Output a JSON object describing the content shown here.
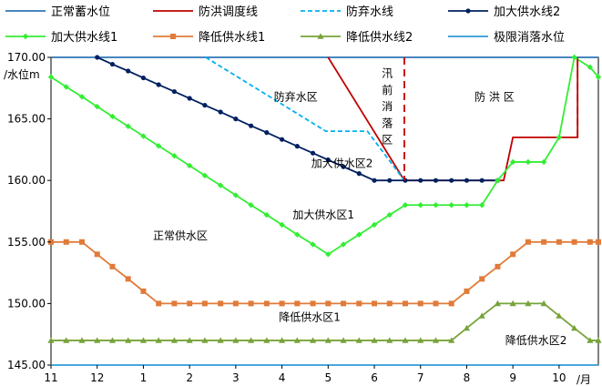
{
  "chart_data": {
    "type": "line",
    "ylabel": "/水位m",
    "xunit": "/月",
    "ylim": [
      145,
      170
    ],
    "yticks": [
      {
        "value": 145,
        "label": "145.00"
      },
      {
        "value": 150,
        "label": "150.00"
      },
      {
        "value": 155,
        "label": "155.00"
      },
      {
        "value": 160,
        "label": "160.00"
      },
      {
        "value": 165,
        "label": "165.00"
      },
      {
        "value": 170,
        "label": "170.00"
      }
    ],
    "xlim": [
      11,
      10.85
    ],
    "xticks": [
      {
        "value": 11,
        "label": "11"
      },
      {
        "value": 12,
        "label": "12"
      },
      {
        "value": 1,
        "label": "1"
      },
      {
        "value": 2,
        "label": "2"
      },
      {
        "value": 3,
        "label": "3"
      },
      {
        "value": 4,
        "label": "4"
      },
      {
        "value": 5,
        "label": "5"
      },
      {
        "value": 6,
        "label": "6"
      },
      {
        "value": 7,
        "label": "7"
      },
      {
        "value": 8,
        "label": "8"
      },
      {
        "value": 9,
        "label": "9"
      },
      {
        "value": 10,
        "label": "10"
      }
    ],
    "grid": false,
    "legend_position": "top",
    "series": [
      {
        "name": "正常蓄水位",
        "color": "#2e75b6",
        "dash": "",
        "marker": "none",
        "points": [
          [
            11,
            170
          ],
          [
            10.85,
            170
          ]
        ]
      },
      {
        "name": "防洪调度线",
        "color": "#c00000",
        "dash": "",
        "marker": "none",
        "points": [
          [
            5,
            170
          ],
          [
            6.65,
            160
          ],
          [
            8.8,
            160
          ],
          [
            9,
            163.5
          ],
          [
            10.4,
            163.5
          ],
          [
            10.4,
            170
          ]
        ]
      },
      {
        "name": "防弃水线",
        "color": "#00b0f0",
        "dash": "5,3",
        "marker": "none",
        "points": [
          [
            2.35,
            170
          ],
          [
            4.95,
            164
          ],
          [
            5.85,
            164
          ],
          [
            6.65,
            160
          ]
        ]
      },
      {
        "name": "加大供水线2",
        "color": "#002060",
        "dash": "",
        "marker": "circle",
        "points": [
          [
            12,
            170
          ],
          [
            12.33,
            169.44
          ],
          [
            12.67,
            168.89
          ],
          [
            1,
            168.33
          ],
          [
            1.33,
            167.78
          ],
          [
            1.67,
            167.22
          ],
          [
            2,
            166.67
          ],
          [
            2.33,
            166.11
          ],
          [
            2.67,
            165.56
          ],
          [
            3,
            165
          ],
          [
            3.33,
            164.44
          ],
          [
            3.67,
            163.89
          ],
          [
            4,
            163.33
          ],
          [
            4.33,
            162.78
          ],
          [
            4.67,
            162.22
          ],
          [
            5,
            161.67
          ],
          [
            5.33,
            161.11
          ],
          [
            5.67,
            160.56
          ],
          [
            6,
            160
          ],
          [
            6.33,
            160
          ],
          [
            6.67,
            160
          ],
          [
            7,
            160
          ],
          [
            7.33,
            160
          ],
          [
            7.67,
            160
          ],
          [
            8,
            160
          ],
          [
            8.33,
            160
          ],
          [
            8.67,
            160
          ]
        ]
      },
      {
        "name": "加大供水线1",
        "color": "#33ee33",
        "dash": "",
        "marker": "diamond",
        "points": [
          [
            11,
            168.4
          ],
          [
            11.33,
            167.6
          ],
          [
            11.67,
            166.8
          ],
          [
            12,
            166
          ],
          [
            12.33,
            165.2
          ],
          [
            12.67,
            164.4
          ],
          [
            1,
            163.6
          ],
          [
            1.33,
            162.8
          ],
          [
            1.67,
            162
          ],
          [
            2,
            161.2
          ],
          [
            2.33,
            160.4
          ],
          [
            2.67,
            159.6
          ],
          [
            3,
            158.8
          ],
          [
            3.33,
            158
          ],
          [
            3.67,
            157.2
          ],
          [
            4,
            156.4
          ],
          [
            4.33,
            155.6
          ],
          [
            4.67,
            154.8
          ],
          [
            5,
            154
          ],
          [
            5.33,
            154.8
          ],
          [
            5.67,
            155.6
          ],
          [
            6,
            156.4
          ],
          [
            6.33,
            157.2
          ],
          [
            6.67,
            158
          ],
          [
            7,
            158
          ],
          [
            7.33,
            158
          ],
          [
            7.67,
            158
          ],
          [
            8,
            158
          ],
          [
            8.33,
            158
          ],
          [
            8.67,
            160
          ],
          [
            9,
            161.5
          ],
          [
            9.33,
            161.5
          ],
          [
            9.67,
            161.5
          ],
          [
            10,
            163.5
          ],
          [
            10.33,
            170
          ],
          [
            10.67,
            169.2
          ],
          [
            10.85,
            168.4
          ]
        ]
      },
      {
        "name": "降低供水线1",
        "color": "#e07b39",
        "dash": "",
        "marker": "square",
        "points": [
          [
            11,
            155
          ],
          [
            11.33,
            155
          ],
          [
            11.67,
            155
          ],
          [
            12,
            154
          ],
          [
            12.33,
            153
          ],
          [
            12.67,
            152
          ],
          [
            1,
            151
          ],
          [
            1.33,
            150
          ],
          [
            1.67,
            150
          ],
          [
            2,
            150
          ],
          [
            2.33,
            150
          ],
          [
            2.67,
            150
          ],
          [
            3,
            150
          ],
          [
            3.33,
            150
          ],
          [
            3.67,
            150
          ],
          [
            4,
            150
          ],
          [
            4.33,
            150
          ],
          [
            4.67,
            150
          ],
          [
            5,
            150
          ],
          [
            5.33,
            150
          ],
          [
            5.67,
            150
          ],
          [
            6,
            150
          ],
          [
            6.33,
            150
          ],
          [
            6.67,
            150
          ],
          [
            7,
            150
          ],
          [
            7.33,
            150
          ],
          [
            7.67,
            150
          ],
          [
            8,
            151
          ],
          [
            8.33,
            152
          ],
          [
            8.67,
            153
          ],
          [
            9,
            154
          ],
          [
            9.33,
            155
          ],
          [
            9.67,
            155
          ],
          [
            10,
            155
          ],
          [
            10.33,
            155
          ],
          [
            10.67,
            155
          ],
          [
            10.85,
            155
          ]
        ]
      },
      {
        "name": "降低供水线2",
        "color": "#77a33a",
        "dash": "",
        "marker": "triangle",
        "points": [
          [
            11,
            147
          ],
          [
            11.33,
            147
          ],
          [
            11.67,
            147
          ],
          [
            12,
            147
          ],
          [
            12.33,
            147
          ],
          [
            12.67,
            147
          ],
          [
            1,
            147
          ],
          [
            1.33,
            147
          ],
          [
            1.67,
            147
          ],
          [
            2,
            147
          ],
          [
            2.33,
            147
          ],
          [
            2.67,
            147
          ],
          [
            3,
            147
          ],
          [
            3.33,
            147
          ],
          [
            3.67,
            147
          ],
          [
            4,
            147
          ],
          [
            4.33,
            147
          ],
          [
            4.67,
            147
          ],
          [
            5,
            147
          ],
          [
            5.33,
            147
          ],
          [
            5.67,
            147
          ],
          [
            6,
            147
          ],
          [
            6.33,
            147
          ],
          [
            6.67,
            147
          ],
          [
            7,
            147
          ],
          [
            7.33,
            147
          ],
          [
            7.67,
            147
          ],
          [
            8,
            148
          ],
          [
            8.33,
            149
          ],
          [
            8.67,
            150
          ],
          [
            9,
            150
          ],
          [
            9.33,
            150
          ],
          [
            9.67,
            150
          ],
          [
            10,
            149
          ],
          [
            10.33,
            148
          ],
          [
            10.67,
            147
          ],
          [
            10.85,
            147
          ]
        ]
      },
      {
        "name": "极限消落水位",
        "color": "#2e9bd6",
        "dash": "",
        "marker": "none",
        "points": [
          [
            11,
            145
          ],
          [
            10.85,
            145
          ]
        ]
      }
    ],
    "extra_lines": [
      {
        "name": "flood-drawdown-boundary",
        "color": "#c00000",
        "dash": "8,5",
        "points": [
          [
            6.65,
            170
          ],
          [
            6.65,
            160
          ]
        ]
      },
      {
        "name": "flood-zone-right-boundary",
        "color": "#c00000",
        "dash": "8,5",
        "points": [
          [
            10.4,
            163.5
          ],
          [
            10.4,
            170
          ]
        ]
      }
    ],
    "annotations": [
      {
        "text": "防弃水区",
        "x": 4.3,
        "y": 166.5
      },
      {
        "text": "加大供水区2",
        "x": 5.3,
        "y": 161.1
      },
      {
        "text": "加大供水区1",
        "x": 4.9,
        "y": 156.9
      },
      {
        "text": "正常供水区",
        "x": 1.8,
        "y": 155.2
      },
      {
        "text": "降低供水区1",
        "x": 4.6,
        "y": 148.6
      },
      {
        "text": "降低供水区2",
        "x": 9.5,
        "y": 146.7
      },
      {
        "text": "防 洪 区",
        "x": 8.6,
        "y": 166.5
      }
    ],
    "vertical_annotation": {
      "chars": [
        "汛",
        "前",
        "消",
        "落",
        "区"
      ],
      "x": 6.28,
      "y_top": 168.4,
      "y_step": 1.35
    }
  }
}
